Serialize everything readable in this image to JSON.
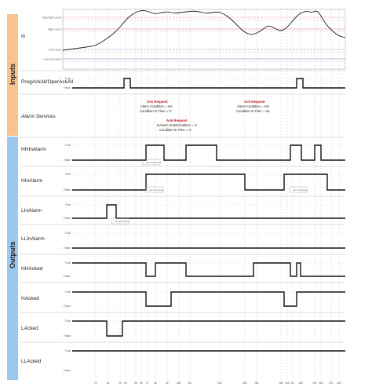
{
  "sections": {
    "inputs_label": "Inputs",
    "outputs_label": "Outputs"
  },
  "colors": {
    "inputs_bar": "#f7c38f",
    "outputs_bar": "#9cc8ee",
    "alarm_red": "#c0121b",
    "level_red": "#e07070",
    "level_blue": "#7a7ac8"
  },
  "input_signal": {
    "label": "In",
    "levels": [
      "HighHigh Level",
      "High Level",
      "Low Level",
      "LowLow Level"
    ]
  },
  "true_label": "True",
  "false_label": "False",
  "time_labels": [
    "t1",
    "t2",
    "t3",
    "t4",
    "t5",
    "t6",
    "t7",
    "t8",
    "t9",
    "t10",
    "t11",
    "t12",
    "t13",
    "t14",
    "t15",
    "t16",
    "t17",
    "t18",
    "t19",
    "t20",
    "t21",
    "t22"
  ],
  "lanes": [
    {
      "id": "prog",
      "label": "ProgAckAll/OperAckAll",
      "section": "inputs"
    },
    {
      "id": "services",
      "label": "Alarm Services",
      "section": "inputs"
    },
    {
      "id": "hhin",
      "label": "HHInAlarm",
      "section": "outputs"
    },
    {
      "id": "hin",
      "label": "HInAlarm",
      "section": "outputs"
    },
    {
      "id": "lin",
      "label": "LInAlarm",
      "section": "outputs"
    },
    {
      "id": "llin",
      "label": "LLInAlarm",
      "section": "outputs"
    },
    {
      "id": "hhack",
      "label": "HHAcked",
      "section": "outputs"
    },
    {
      "id": "hack",
      "label": "HAcked",
      "section": "outputs"
    },
    {
      "id": "lack",
      "label": "LAcked",
      "section": "outputs"
    },
    {
      "id": "llack",
      "label": "LLAcked",
      "section": "outputs"
    }
  ],
  "annotations": [
    {
      "title": "Ack Request",
      "lines": [
        "Alarm Condition = HH",
        "Condition In Time = t7"
      ]
    },
    {
      "title": "Ack Request",
      "lines": [
        "InAlarm SubsCondition = H",
        "Condition In Time = t7"
      ]
    },
    {
      "title": "Ack Request",
      "lines": [
        "Alarm Condition = HH",
        "Condition In Time = t11"
      ]
    }
  ],
  "notes": [
    "Alm Deadband",
    "Alm Deadband",
    "Alm Deadband",
    "Alm Deadband"
  ]
}
